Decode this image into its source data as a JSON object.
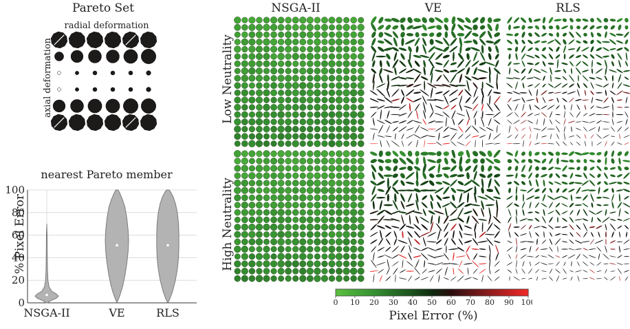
{
  "pareto_set": {
    "title": "Pareto Set",
    "top_label": "radial deformation",
    "side_label": "axial deformation",
    "grid_radius_fraction": [
      [
        1.0,
        1.0,
        1.0,
        1.0,
        1.0,
        1.0
      ],
      [
        0.55,
        0.75,
        0.8,
        0.8,
        0.85,
        0.9
      ],
      [
        0.2,
        0.22,
        0.25,
        0.25,
        0.25,
        0.28
      ],
      [
        0.2,
        0.22,
        0.25,
        0.25,
        0.25,
        0.28
      ],
      [
        0.75,
        0.8,
        0.85,
        0.85,
        0.9,
        0.9
      ],
      [
        1.0,
        1.0,
        1.0,
        1.0,
        1.0,
        1.0
      ]
    ]
  },
  "violin": {
    "title": "nearest Pareto member",
    "ylabel": "% Pixel Error",
    "yticks": [
      "0",
      "20",
      "40",
      "60",
      "80",
      "100"
    ],
    "categories": [
      "NSGA-II",
      "VE",
      "RLS"
    ]
  },
  "panels": {
    "col_titles": [
      "NSGA-II",
      "VE",
      "RLS"
    ],
    "row_labels": [
      "Low Neutrality",
      "High Neutrality"
    ]
  },
  "colorbar": {
    "label": "Pixel Error (%)",
    "ticks": [
      "0",
      "10",
      "20",
      "30",
      "40",
      "50",
      "60",
      "70",
      "80",
      "90",
      "100"
    ],
    "colors": [
      "#5cc040",
      "#46a838",
      "#359030",
      "#276e26",
      "#1a4f1b",
      "#0f2b0f",
      "#2a0c0c",
      "#5e1616",
      "#8e1d1d",
      "#c22222",
      "#f02828"
    ]
  },
  "chart_data": {
    "type": "violin",
    "title": "nearest Pareto member",
    "ylabel": "% Pixel Error",
    "ylim": [
      0,
      100
    ],
    "categories": [
      "NSGA-II",
      "VE",
      "RLS"
    ],
    "series": [
      {
        "median": 7,
        "profile": [
          [
            0,
            0.05
          ],
          [
            2,
            0.35
          ],
          [
            4,
            0.8
          ],
          [
            6,
            1.0
          ],
          [
            8,
            0.8
          ],
          [
            10,
            0.45
          ],
          [
            14,
            0.2
          ],
          [
            20,
            0.1
          ],
          [
            30,
            0.06
          ],
          [
            45,
            0.04
          ],
          [
            60,
            0.03
          ],
          [
            70,
            0.0
          ]
        ]
      },
      {
        "median": 51,
        "profile": [
          [
            0,
            0.0
          ],
          [
            3,
            0.12
          ],
          [
            8,
            0.3
          ],
          [
            15,
            0.5
          ],
          [
            25,
            0.7
          ],
          [
            35,
            0.85
          ],
          [
            45,
            0.95
          ],
          [
            55,
            1.0
          ],
          [
            65,
            0.95
          ],
          [
            75,
            0.85
          ],
          [
            85,
            0.68
          ],
          [
            92,
            0.45
          ],
          [
            97,
            0.25
          ],
          [
            100,
            0.1
          ]
        ]
      },
      {
        "median": 51,
        "profile": [
          [
            0,
            0.0
          ],
          [
            3,
            0.15
          ],
          [
            10,
            0.4
          ],
          [
            20,
            0.65
          ],
          [
            30,
            0.82
          ],
          [
            40,
            0.92
          ],
          [
            50,
            0.95
          ],
          [
            60,
            0.95
          ],
          [
            70,
            0.92
          ],
          [
            80,
            0.82
          ],
          [
            88,
            0.65
          ],
          [
            94,
            0.45
          ],
          [
            98,
            0.25
          ],
          [
            100,
            0.12
          ]
        ]
      }
    ],
    "grid": true
  }
}
